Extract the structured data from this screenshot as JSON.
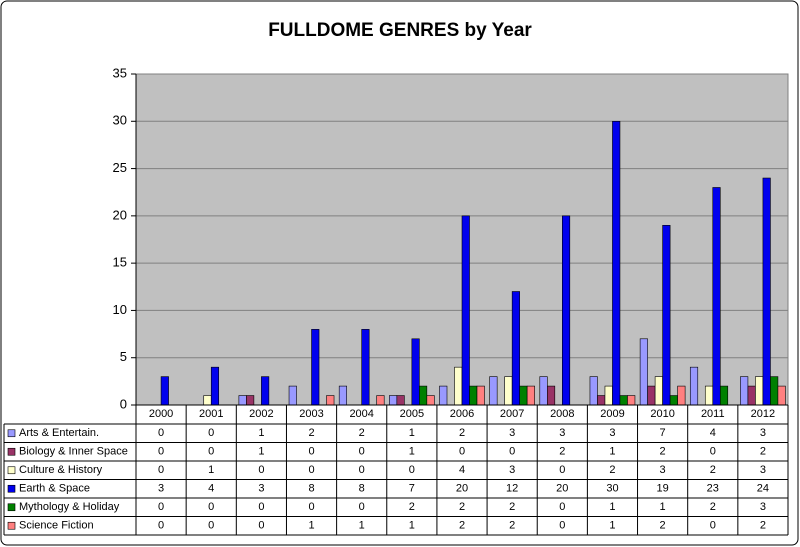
{
  "chart_data": {
    "type": "bar",
    "title": "FULLDOME GENRES by Year",
    "categories": [
      "2000",
      "2001",
      "2002",
      "2003",
      "2004",
      "2005",
      "2006",
      "2007",
      "2008",
      "2009",
      "2010",
      "2011",
      "2012"
    ],
    "series": [
      {
        "name": "Arts & Entertain.",
        "color": "#9999ff",
        "values": [
          0,
          0,
          1,
          2,
          2,
          1,
          2,
          3,
          3,
          3,
          7,
          4,
          3
        ]
      },
      {
        "name": "Biology & Inner Space",
        "color": "#993366",
        "values": [
          0,
          0,
          1,
          0,
          0,
          1,
          0,
          0,
          2,
          1,
          2,
          0,
          2
        ]
      },
      {
        "name": "Culture & History",
        "color": "#ffffcc",
        "values": [
          0,
          1,
          0,
          0,
          0,
          0,
          4,
          3,
          0,
          2,
          3,
          2,
          3
        ]
      },
      {
        "name": "Earth & Space",
        "color": "#0000ee",
        "values": [
          3,
          4,
          3,
          8,
          8,
          7,
          20,
          12,
          20,
          30,
          19,
          23,
          24
        ]
      },
      {
        "name": "Mythology & Holiday",
        "color": "#008000",
        "values": [
          0,
          0,
          0,
          0,
          0,
          2,
          2,
          2,
          0,
          1,
          1,
          2,
          3
        ]
      },
      {
        "name": "Science Fiction",
        "color": "#ff8080",
        "values": [
          0,
          0,
          0,
          1,
          1,
          1,
          2,
          2,
          0,
          1,
          2,
          0,
          2
        ]
      }
    ],
    "ylim": [
      0,
      35
    ],
    "yticks": [
      0,
      5,
      10,
      15,
      20,
      25,
      30,
      35
    ],
    "grid": true
  }
}
